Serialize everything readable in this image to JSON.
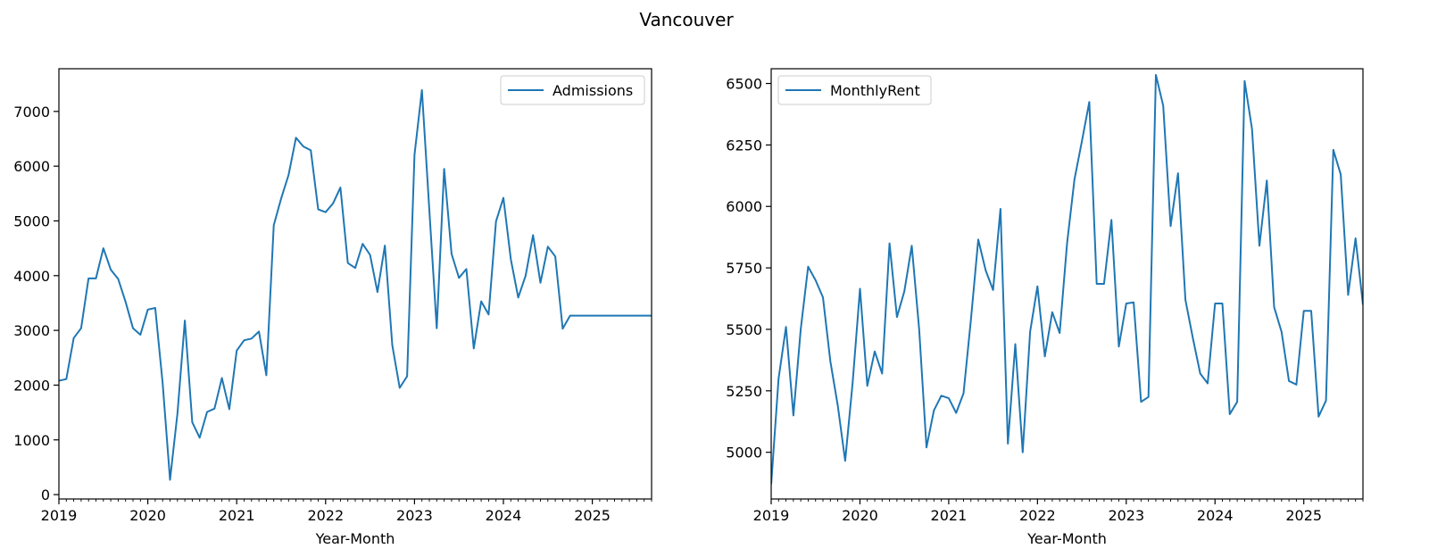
{
  "figure": {
    "title": "Vancouver"
  },
  "colors": {
    "line": "#1f77b4",
    "axis": "#000000",
    "legend_border": "#cccccc",
    "background": "#ffffff"
  },
  "chart_data": [
    {
      "type": "line",
      "title": "",
      "xlabel": "Year-Month",
      "ylabel": "",
      "x_unit": "month",
      "x_start": "2019-01",
      "xlim": [
        "2019-01",
        "2025-09"
      ],
      "ylim": [
        -80,
        7780
      ],
      "xticks": [
        "2019",
        "2020",
        "2021",
        "2022",
        "2023",
        "2024",
        "2025"
      ],
      "yticks": [
        0,
        1000,
        2000,
        3000,
        4000,
        5000,
        6000,
        7000
      ],
      "grid": false,
      "legend": {
        "position": "upper right",
        "entries": [
          "Admissions"
        ]
      },
      "series": [
        {
          "name": "Admissions",
          "values": [
            2080,
            2110,
            2860,
            3040,
            3950,
            3950,
            4500,
            4110,
            3940,
            3520,
            3040,
            2920,
            3380,
            3410,
            2040,
            270,
            1480,
            3180,
            1320,
            1040,
            1510,
            1570,
            2130,
            1560,
            2630,
            2820,
            2850,
            2980,
            2180,
            4920,
            5410,
            5840,
            6520,
            6360,
            6290,
            5210,
            5160,
            5320,
            5610,
            4230,
            4140,
            4580,
            4380,
            3700,
            4550,
            2730,
            1950,
            2160,
            6210,
            7390,
            5200,
            3040,
            5950,
            4400,
            3960,
            4120,
            2670,
            3530,
            3290,
            4990,
            5420,
            4300,
            3600,
            4000,
            4740,
            3870,
            4530,
            4350,
            3030,
            3270,
            3270,
            3270,
            3270,
            3270,
            3270,
            3270,
            3270,
            3270,
            3270,
            3270,
            3270
          ]
        }
      ]
    },
    {
      "type": "line",
      "title": "",
      "xlabel": "Year-Month",
      "ylabel": "",
      "x_unit": "month",
      "x_start": "2019-01",
      "xlim": [
        "2019-01",
        "2025-09"
      ],
      "ylim": [
        4810,
        6560
      ],
      "xticks": [
        "2019",
        "2020",
        "2021",
        "2022",
        "2023",
        "2024",
        "2025"
      ],
      "yticks": [
        5000,
        5250,
        5500,
        5750,
        6000,
        6250,
        6500
      ],
      "grid": false,
      "legend": {
        "position": "upper left",
        "entries": [
          "MonthlyRent"
        ]
      },
      "series": [
        {
          "name": "MonthlyRent",
          "values": [
            4870,
            5300,
            5510,
            5150,
            5500,
            5755,
            5700,
            5630,
            5370,
            5190,
            4965,
            5280,
            5665,
            5270,
            5410,
            5320,
            5850,
            5550,
            5655,
            5840,
            5500,
            5020,
            5170,
            5230,
            5220,
            5160,
            5240,
            5540,
            5865,
            5740,
            5660,
            5990,
            5035,
            5440,
            5000,
            5490,
            5675,
            5390,
            5570,
            5485,
            5850,
            6110,
            6265,
            6425,
            5685,
            5685,
            5945,
            5430,
            5605,
            5610,
            5205,
            5225,
            6535,
            6410,
            5920,
            6135,
            5620,
            5465,
            5320,
            5280,
            5605,
            5605,
            5155,
            5205,
            6510,
            6315,
            5840,
            6105,
            5590,
            5490,
            5290,
            5275,
            5575,
            5575,
            5145,
            5210,
            6230,
            6130,
            5640,
            5870,
            5600
          ]
        }
      ]
    }
  ]
}
